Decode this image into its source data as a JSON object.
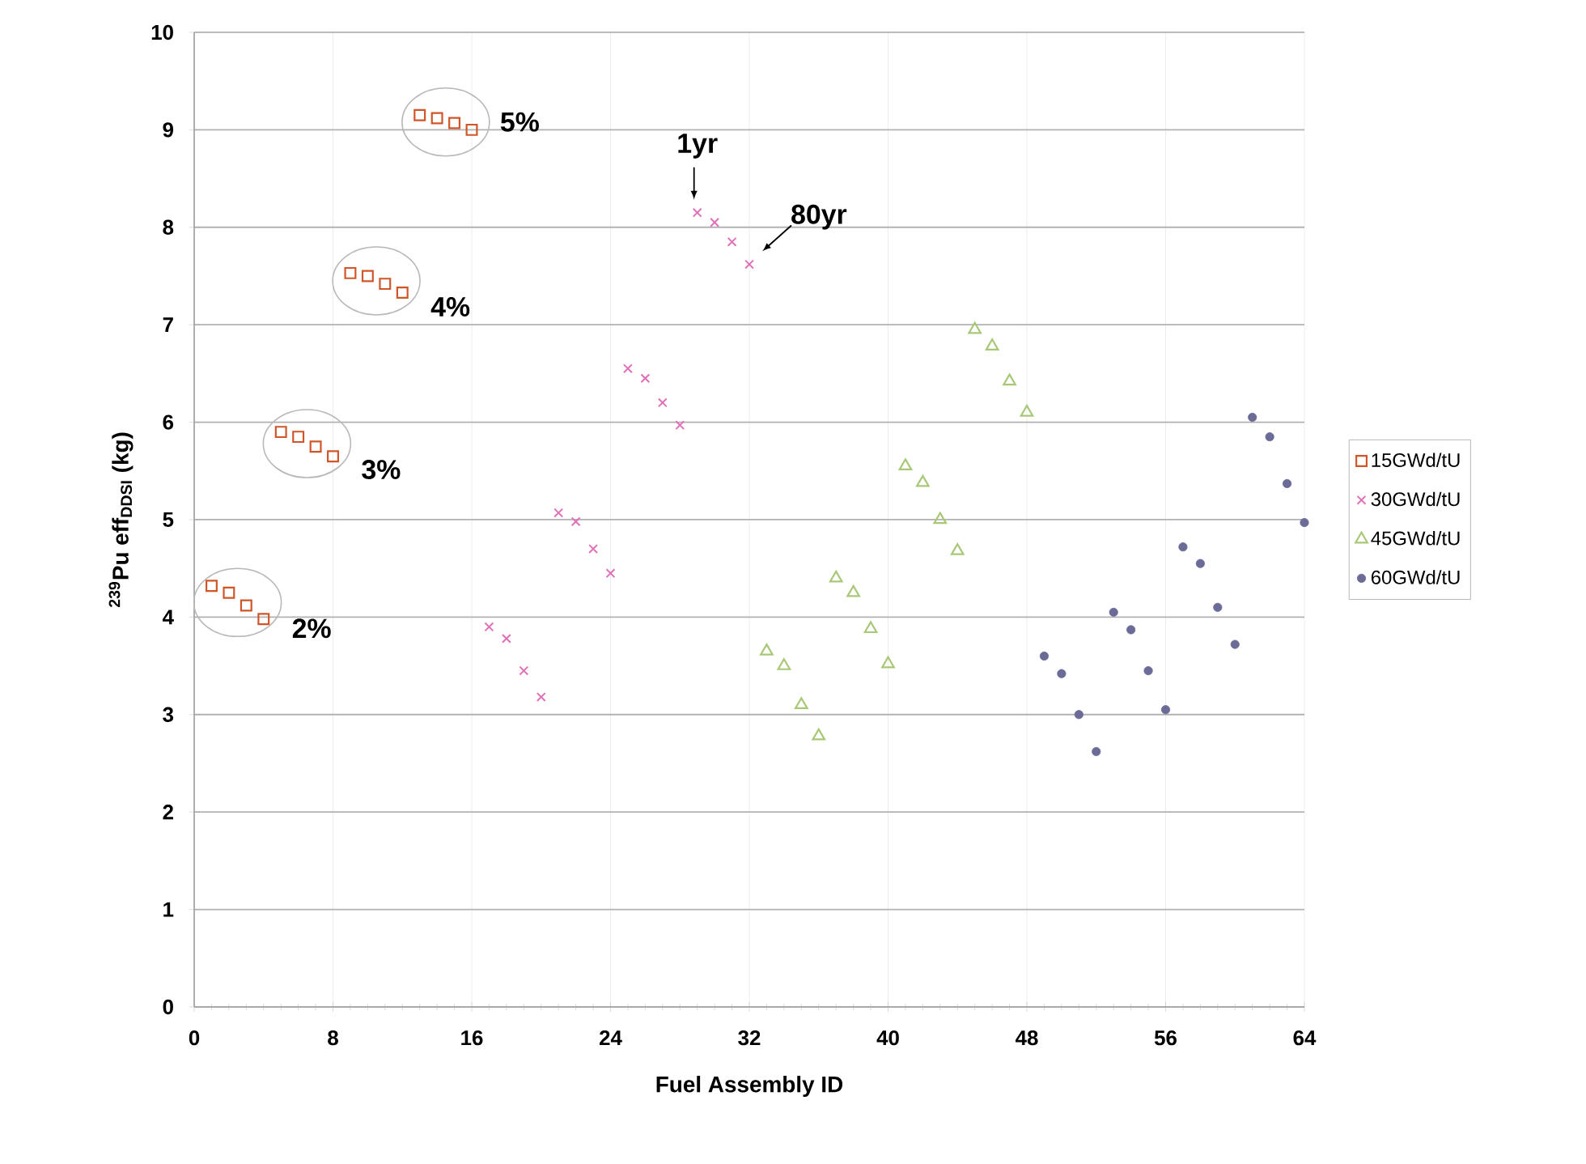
{
  "chart_data": {
    "type": "scatter",
    "xlabel": "Fuel Assembly  ID",
    "ylabel": "$^{239}$Pu eff$_{DDSI}$ (kg)",
    "xlim": [
      0,
      64
    ],
    "xticks": [
      0,
      8,
      16,
      24,
      32,
      40,
      48,
      56,
      64
    ],
    "ylim": [
      0,
      10
    ],
    "yticks": [
      0,
      1,
      2,
      3,
      4,
      5,
      6,
      7,
      8,
      9,
      10
    ],
    "grid": true,
    "legend": "right",
    "series": [
      {
        "name": "15GWd/tU",
        "color": "#d0562a",
        "marker": "square",
        "x": [
          1,
          2,
          3,
          4,
          5,
          6,
          7,
          8,
          9,
          10,
          11,
          12,
          13,
          14,
          15,
          16
        ],
        "values": [
          4.32,
          4.25,
          4.12,
          3.98,
          5.9,
          5.85,
          5.75,
          5.65,
          7.53,
          7.5,
          7.42,
          7.33,
          9.15,
          9.12,
          9.07,
          9.0
        ]
      },
      {
        "name": "30GWd/tU",
        "color": "#e070b8",
        "marker": "cross",
        "x": [
          17,
          18,
          19,
          20,
          21,
          22,
          23,
          24,
          25,
          26,
          27,
          28,
          29,
          30,
          31,
          32
        ],
        "values": [
          3.9,
          3.78,
          3.45,
          3.18,
          5.07,
          4.98,
          4.7,
          4.45,
          6.55,
          6.45,
          6.2,
          5.97,
          8.15,
          8.05,
          7.85,
          7.62
        ]
      },
      {
        "name": "45GWd/tU",
        "color": "#a8c878",
        "marker": "triangle",
        "x": [
          33,
          34,
          35,
          36,
          37,
          38,
          39,
          40,
          41,
          42,
          43,
          44,
          45,
          46,
          47,
          48
        ],
        "values": [
          3.65,
          3.5,
          3.1,
          2.78,
          4.4,
          4.25,
          3.88,
          3.52,
          5.55,
          5.38,
          5.0,
          4.68,
          6.95,
          6.78,
          6.42,
          6.1
        ]
      },
      {
        "name": "60GWd/tU",
        "color": "#6b6b98",
        "marker": "circle",
        "x": [
          49,
          50,
          51,
          52,
          53,
          54,
          55,
          56,
          57,
          58,
          59,
          60,
          61,
          62,
          63,
          64
        ],
        "values": [
          3.6,
          3.42,
          3.0,
          2.62,
          4.05,
          3.87,
          3.45,
          3.05,
          4.72,
          4.55,
          4.1,
          3.72,
          6.05,
          5.85,
          5.37,
          4.97
        ]
      }
    ],
    "annotations": [
      {
        "text": "2%",
        "x": 2.5,
        "y": 4.15
      },
      {
        "text": "3%",
        "x": 6.5,
        "y": 5.78
      },
      {
        "text": "4%",
        "x": 10.5,
        "y": 7.45
      },
      {
        "text": "5%",
        "x": 14.5,
        "y": 9.08
      },
      {
        "text": "1yr",
        "x": 29,
        "y": 8.15
      },
      {
        "text": "80yr",
        "x": 32,
        "y": 7.62
      }
    ]
  }
}
